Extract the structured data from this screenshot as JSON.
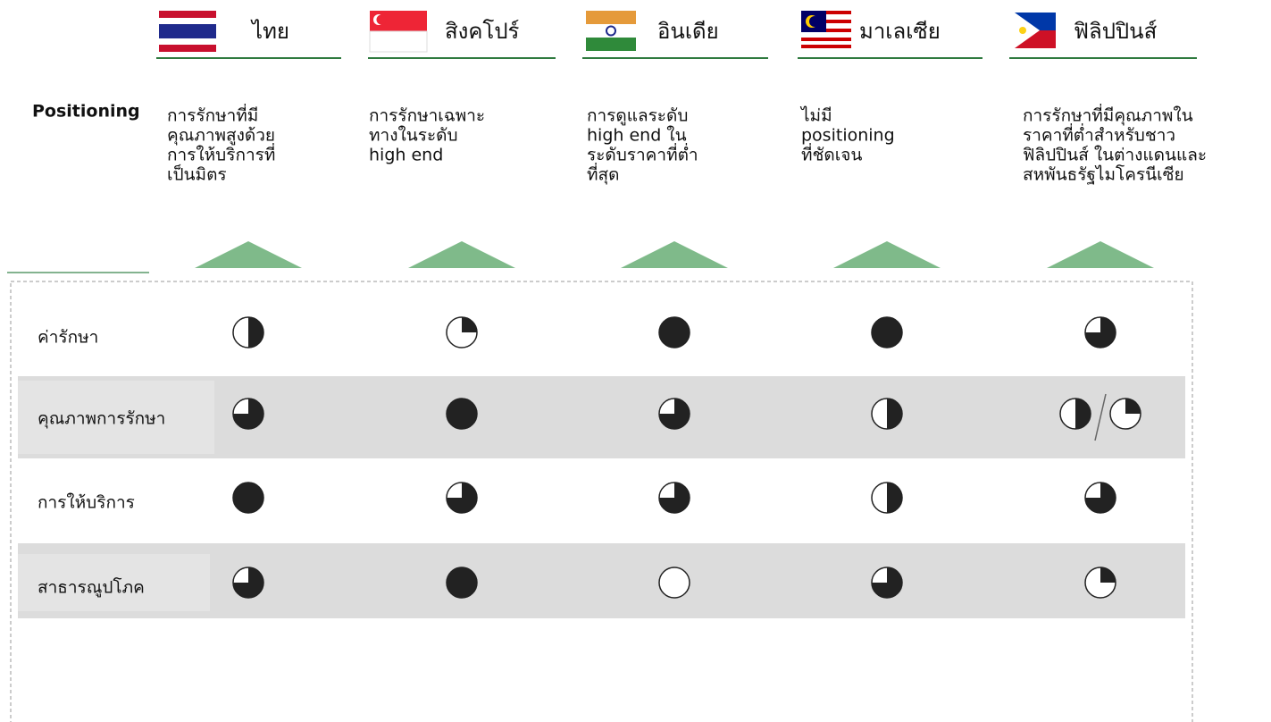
{
  "header": {
    "countries": [
      "ไทย",
      "สิงคโปร์",
      "อินเดีย",
      "มาเลเซีย",
      "ฟิลิปปินส์"
    ]
  },
  "positioning": {
    "label": "Positioning",
    "texts": [
      [
        "การรักษาที่มี",
        "คุณภาพสูงด้วย",
        "การให้บริการที่",
        "เป็นมิตร"
      ],
      [
        "การรักษาเฉพาะ",
        "ทางในระดับ",
        "high end"
      ],
      [
        "การดูแลระดับ",
        "high end ใน",
        "ระดับราคาที่ต่ำ",
        "ที่สุด"
      ],
      [
        "ไม่มี",
        "positioning",
        "ที่ชัดเจน"
      ],
      [
        "การรักษาที่มีคุณภาพใน",
        "ราคาที่ต่ำสำหรับชาว",
        "ฟิลิปปินส์ ในต่างแดนและ",
        "สหพันธรัฐไมโครนีเซีย"
      ]
    ]
  },
  "table": {
    "rows": [
      {
        "label": "ค่ารักษา",
        "ratings": [
          2,
          1,
          4,
          4,
          3
        ]
      },
      {
        "label": "คุณภาพการรักษา",
        "ratings": [
          3,
          4,
          3,
          2,
          [
            2,
            1
          ]
        ]
      },
      {
        "label": "การให้บริการ",
        "ratings": [
          4,
          3,
          3,
          2,
          3
        ]
      },
      {
        "label": "สาธารณูปโภค",
        "ratings": [
          3,
          4,
          0,
          3,
          1
        ]
      }
    ]
  }
}
